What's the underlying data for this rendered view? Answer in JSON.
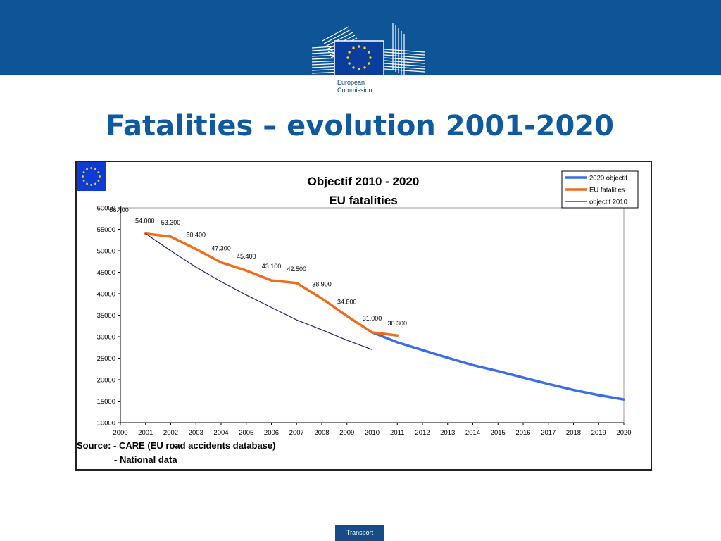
{
  "slide": {
    "title": "Fatalities – evolution 2001-2020",
    "logo_text": [
      "European",
      "Commission"
    ],
    "source_lines": [
      "Source: - CARE (EU road accidents database)",
      "- National data"
    ],
    "footer": "Transport"
  },
  "colors": {
    "header_band": "#0e5597",
    "title": "#0f5a9e",
    "objective_2020": "#3b6ee6",
    "eu_fatalities": "#ee6d1a",
    "objective_2010": "#1c1f7a"
  },
  "chart_data": {
    "type": "line",
    "title": [
      "Objectif 2010 - 2020",
      "EU fatalities"
    ],
    "xlabel": "",
    "ylabel": "",
    "x_ticks": [
      "2000",
      "2001",
      "2002",
      "2003",
      "2004",
      "2005",
      "2006",
      "2007",
      "2008",
      "2009",
      "2010",
      "2011",
      "2012",
      "2013",
      "2014",
      "2015",
      "2016",
      "2017",
      "2018",
      "2019",
      "2020"
    ],
    "y_ticks": [
      "10000",
      "15000",
      "20000",
      "25000",
      "30000",
      "35000",
      "40000",
      "45000",
      "50000",
      "55000",
      "60000"
    ],
    "xlim": [
      2000,
      2020
    ],
    "ylim": [
      10000,
      60000
    ],
    "legend_position": "top-right",
    "grid": false,
    "series": [
      {
        "name": "2020 objectif",
        "x": [
          2010,
          2011,
          2012,
          2013,
          2014,
          2015,
          2016,
          2017,
          2018,
          2019,
          2020
        ],
        "y": [
          31000,
          28700,
          26900,
          25100,
          23400,
          22000,
          20500,
          19000,
          17600,
          16400,
          15400
        ]
      },
      {
        "name": "EU fatalities",
        "x": [
          2001,
          2002,
          2003,
          2004,
          2005,
          2006,
          2007,
          2008,
          2009,
          2010,
          2011
        ],
        "y": [
          54000,
          53300,
          50400,
          47300,
          45400,
          43100,
          42500,
          38900,
          34800,
          31000,
          30300
        ],
        "labels": [
          {
            "x": 2001,
            "text": "56.400"
          },
          {
            "x": 2001,
            "text": "54.000"
          },
          {
            "x": 2002,
            "text": "53.300"
          },
          {
            "x": 2003,
            "text": "50.400"
          },
          {
            "x": 2004,
            "text": "47.300"
          },
          {
            "x": 2005,
            "text": "45.400"
          },
          {
            "x": 2006,
            "text": "43.100"
          },
          {
            "x": 2007,
            "text": "42.500"
          },
          {
            "x": 2008,
            "text": "38.900"
          },
          {
            "x": 2009,
            "text": "34.800"
          },
          {
            "x": 2010,
            "text": "31.000"
          },
          {
            "x": 2011,
            "text": "30.300"
          }
        ]
      },
      {
        "name": "objectif 2010",
        "x": [
          2001,
          2002,
          2003,
          2004,
          2005,
          2006,
          2007,
          2008,
          2009,
          2010
        ],
        "y": [
          54000,
          50000,
          46200,
          42800,
          39700,
          36800,
          33900,
          31600,
          29200,
          27000
        ]
      }
    ],
    "reference_line_x": 2010
  }
}
